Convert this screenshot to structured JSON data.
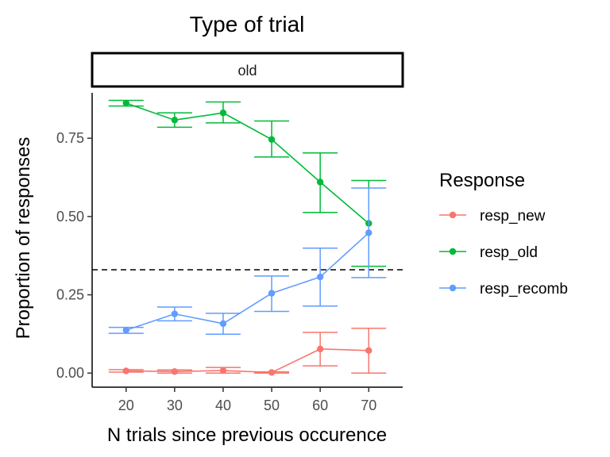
{
  "chart_data": {
    "type": "line",
    "title": "Type of trial",
    "facet_label": "old",
    "xlabel": "N trials since previous occurence",
    "ylabel": "Proportion of responses",
    "x": [
      20,
      30,
      40,
      50,
      60,
      70
    ],
    "x_ticks": [
      "20",
      "30",
      "40",
      "50",
      "60",
      "70"
    ],
    "xlim": [
      13,
      77
    ],
    "y_ticks": [
      "0.00",
      "0.25",
      "0.50",
      "0.75"
    ],
    "y_tick_values": [
      0,
      0.25,
      0.5,
      0.75
    ],
    "ylim": [
      -0.045,
      0.895
    ],
    "reference_line": {
      "y": 0.33,
      "style": "dashed",
      "color": "#000000"
    },
    "grid": false,
    "legend_title": "Response",
    "legend_position": "right",
    "series": [
      {
        "name": "resp_new",
        "color": "#F8766D",
        "values": [
          0.007,
          0.005,
          0.008,
          0.002,
          0.077,
          0.072
        ],
        "lower": [
          0.003,
          0.0,
          0.0,
          0.0,
          0.023,
          0.0
        ],
        "upper": [
          0.011,
          0.01,
          0.018,
          0.004,
          0.13,
          0.143
        ]
      },
      {
        "name": "resp_old",
        "color": "#00BA38",
        "values": [
          0.862,
          0.808,
          0.831,
          0.746,
          0.61,
          0.478
        ],
        "lower": [
          0.853,
          0.785,
          0.799,
          0.69,
          0.513,
          0.341
        ],
        "upper": [
          0.871,
          0.831,
          0.866,
          0.805,
          0.703,
          0.615
        ]
      },
      {
        "name": "resp_recomb",
        "color": "#619CFF",
        "values": [
          0.137,
          0.189,
          0.158,
          0.255,
          0.307,
          0.448
        ],
        "lower": [
          0.127,
          0.167,
          0.124,
          0.197,
          0.214,
          0.305
        ],
        "upper": [
          0.146,
          0.211,
          0.191,
          0.31,
          0.399,
          0.591
        ]
      }
    ]
  }
}
